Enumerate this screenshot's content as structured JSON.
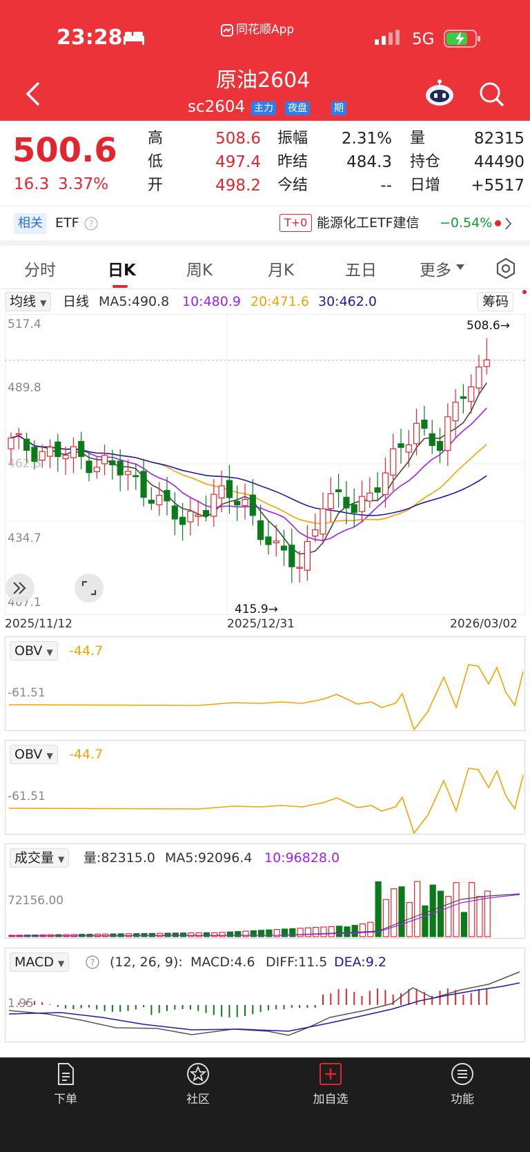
{
  "status": {
    "time": "23:28",
    "app": "同花顺App",
    "network": "5G"
  },
  "header": {
    "title": "原油2604",
    "code": "sc2604",
    "tags": [
      "主力",
      "夜盘",
      "期"
    ]
  },
  "quote": {
    "price": "500.6",
    "change": "16.3",
    "pct": "3.37%",
    "cells": [
      {
        "label": "高",
        "value": "508.6"
      },
      {
        "label": "低",
        "value": "497.4"
      },
      {
        "label": "开",
        "value": "498.2"
      },
      {
        "label": "振幅",
        "value": "2.31%"
      },
      {
        "label": "昨结",
        "value": "484.3"
      },
      {
        "label": "今结",
        "value": "--"
      },
      {
        "label": "量",
        "value": "82315"
      },
      {
        "label": "持仓",
        "value": "44490"
      },
      {
        "label": "日增",
        "value": "+5517"
      }
    ]
  },
  "related": {
    "tag": "相关",
    "etf": "ETF",
    "t0": "T+0",
    "etf_name": "能源化工ETF建信",
    "etf_change": "−0.54%"
  },
  "tabs": [
    "分时",
    "日K",
    "周K",
    "月K",
    "五日",
    "更多"
  ],
  "kline": {
    "ma_select": "均线",
    "period": "日线",
    "ma5": "MA5:490.8",
    "ma10": "10:480.9",
    "ma20": "20:471.6",
    "ma30": "30:462.0",
    "chip": "筹码",
    "y_labels": [
      "517.4",
      "489.8",
      "462.3",
      "434.7",
      "407.1"
    ],
    "high_label": "508.6→",
    "low_label": "415.9→",
    "dates": [
      "2025/11/12",
      "2025/12/31",
      "2026/03/02"
    ]
  },
  "obv1": {
    "name": "OBV",
    "value": "-44.7",
    "axis": "-61.51"
  },
  "obv2": {
    "name": "OBV",
    "value": "-44.7",
    "axis": "-61.51"
  },
  "volume": {
    "name": "成交量",
    "vol": "量:82315.0",
    "ma5": "MA5:92096.4",
    "ma10": "10:96828.0",
    "axis": "72156.00"
  },
  "macd": {
    "name": "MACD",
    "params": "(12, 26, 9):",
    "macd": "MACD:4.6",
    "diff": "DIFF:11.5",
    "dea": "DEA:9.2",
    "axis": "1.95"
  },
  "nav": [
    "下单",
    "社区",
    "加自选",
    "功能"
  ],
  "colors": {
    "header": "#ec3339",
    "up": "#e3262e",
    "down": "#0b7a1a",
    "ma5": "#444444",
    "ma10": "#a020f0",
    "ma20": "#f5a300",
    "ma30": "#1a1aa8",
    "obv": "#f5a300"
  }
}
